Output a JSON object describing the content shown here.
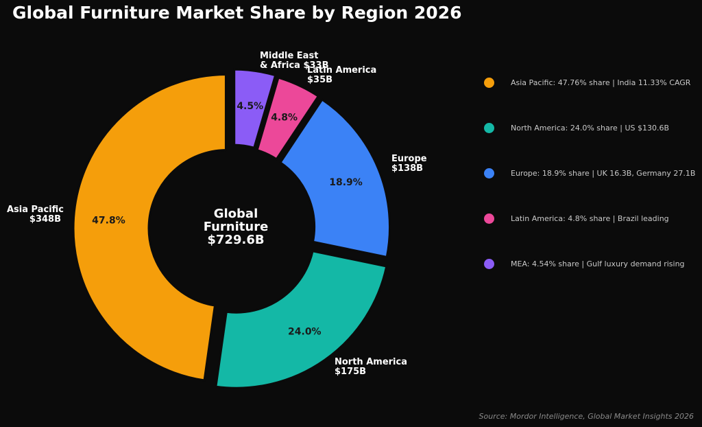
{
  "chart_data": {
    "type": "pie",
    "title": "Global Furniture Market Share by Region 2026",
    "center_label": "Global\nFurniture\n$729.6B",
    "slices": [
      {
        "name": "Asia Pacific",
        "value": 47.76,
        "pct_label": "47.8%",
        "label": "Asia Pacific\n$348B",
        "color": "#f59e0b"
      },
      {
        "name": "North America",
        "value": 24.0,
        "pct_label": "24.0%",
        "label": "North America\n$175B",
        "color": "#14b8a6"
      },
      {
        "name": "Europe",
        "value": 18.9,
        "pct_label": "18.9%",
        "label": "Europe\n$138B",
        "color": "#3b82f6"
      },
      {
        "name": "Latin America",
        "value": 4.8,
        "pct_label": "4.8%",
        "label": "Latin America\n$35B",
        "color": "#ec4899"
      },
      {
        "name": "Middle East & Africa",
        "value": 4.54,
        "pct_label": "4.5%",
        "label": "Middle East\n& Africa $33B",
        "color": "#8b5cf6"
      }
    ],
    "legend": [
      "Asia Pacific: 47.76% share | India 11.33% CAGR",
      "North America: 24.0% share | US $130.6B",
      "Europe: 18.9% share | UK 16.3B, Germany 27.1B",
      "Latin America: 4.8% share | Brazil leading",
      "MEA: 4.54% share | Gulf luxury demand rising"
    ],
    "legend_placement": "right",
    "source": "Source: Mordor Intelligence, Global Market Insights 2026"
  }
}
